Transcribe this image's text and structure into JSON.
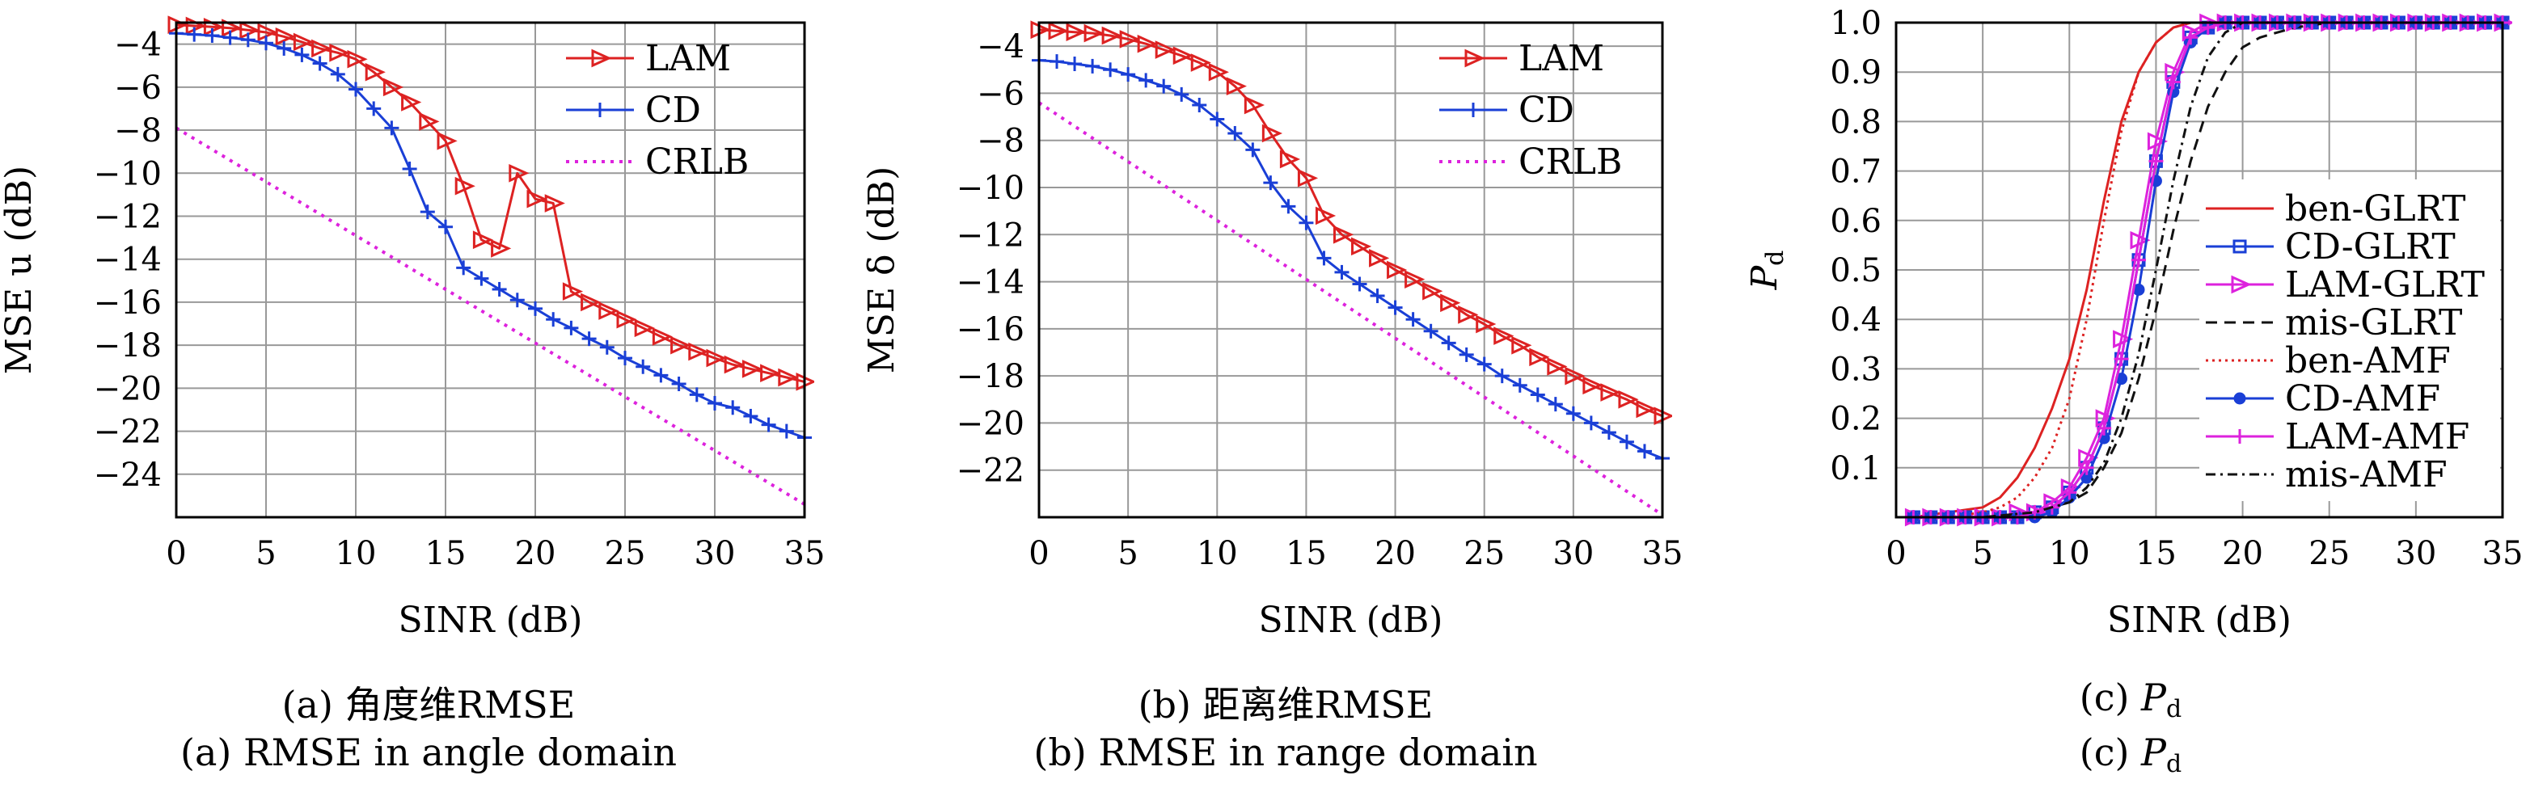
{
  "colors": {
    "lam": "#dd2222",
    "cd": "#1a3fd6",
    "crlb": "#dd22dd",
    "grid": "#999999",
    "frame": "#000000"
  },
  "captions": {
    "a": [
      "(a) 角度维RMSE",
      "(a) RMSE in angle domain"
    ],
    "b": [
      "(b) 距离维RMSE",
      "(b) RMSE in range domain"
    ],
    "c": [
      "(c) ",
      "(c) "
    ]
  },
  "chart_data": [
    {
      "id": "a",
      "type": "line",
      "xlabel": "SINR (dB)",
      "ylabel": "MSE u (dB)",
      "xlim": [
        0,
        35
      ],
      "ylim": [
        -26,
        -3
      ],
      "xticks": [
        0,
        5,
        10,
        15,
        20,
        25,
        30,
        35
      ],
      "yticks": [
        -24,
        -22,
        -20,
        -18,
        -16,
        -14,
        -12,
        -10,
        -8,
        -6,
        -4
      ],
      "grid": true,
      "legend_position": "top-right",
      "legend_bg": false,
      "series": [
        {
          "name": "LAM",
          "color": "#dd2222",
          "marker": "tri-right",
          "dash": "",
          "width": 3,
          "x": [
            0,
            1,
            2,
            3,
            4,
            5,
            6,
            7,
            8,
            9,
            10,
            11,
            12,
            13,
            14,
            15,
            16,
            17,
            18,
            19,
            20,
            21,
            22,
            23,
            24,
            25,
            26,
            27,
            28,
            29,
            30,
            31,
            32,
            33,
            34,
            35
          ],
          "y": [
            -3.1,
            -3.15,
            -3.2,
            -3.25,
            -3.35,
            -3.45,
            -3.65,
            -3.9,
            -4.2,
            -4.4,
            -4.7,
            -5.3,
            -6.0,
            -6.7,
            -7.6,
            -8.5,
            -10.6,
            -13.1,
            -13.5,
            -10.0,
            -11.2,
            -11.4,
            -15.5,
            -16.0,
            -16.4,
            -16.8,
            -17.2,
            -17.6,
            -18.0,
            -18.3,
            -18.6,
            -18.9,
            -19.1,
            -19.3,
            -19.5,
            -19.7
          ]
        },
        {
          "name": "CD",
          "color": "#1a3fd6",
          "marker": "plus",
          "dash": "",
          "width": 3,
          "x": [
            0,
            1,
            2,
            3,
            4,
            5,
            6,
            7,
            8,
            9,
            10,
            11,
            12,
            13,
            14,
            15,
            16,
            17,
            18,
            19,
            20,
            21,
            22,
            23,
            24,
            25,
            26,
            27,
            28,
            29,
            30,
            31,
            32,
            33,
            34,
            35
          ],
          "y": [
            -3.5,
            -3.55,
            -3.6,
            -3.7,
            -3.8,
            -3.95,
            -4.2,
            -4.5,
            -4.9,
            -5.4,
            -6.1,
            -7.0,
            -7.9,
            -9.8,
            -11.8,
            -12.5,
            -14.4,
            -14.9,
            -15.4,
            -15.9,
            -16.3,
            -16.8,
            -17.2,
            -17.7,
            -18.1,
            -18.6,
            -19.0,
            -19.4,
            -19.8,
            -20.3,
            -20.7,
            -20.9,
            -21.3,
            -21.7,
            -22.0,
            -22.3
          ]
        },
        {
          "name": "CRLB",
          "color": "#dd22dd",
          "marker": "none",
          "dash": "4 7",
          "width": 4,
          "x": [
            0,
            35
          ],
          "y": [
            -7.9,
            -25.4
          ]
        }
      ]
    },
    {
      "id": "b",
      "type": "line",
      "xlabel": "SINR (dB)",
      "ylabel": "MSE δ (dB)",
      "xlim": [
        0,
        35
      ],
      "ylim": [
        -24,
        -3
      ],
      "xticks": [
        0,
        5,
        10,
        15,
        20,
        25,
        30,
        35
      ],
      "yticks": [
        -22,
        -20,
        -18,
        -16,
        -14,
        -12,
        -10,
        -8,
        -6,
        -4
      ],
      "grid": true,
      "legend_position": "top-right",
      "legend_bg": false,
      "series": [
        {
          "name": "LAM",
          "color": "#dd2222",
          "marker": "tri-right",
          "dash": "",
          "width": 3,
          "x": [
            0,
            1,
            2,
            3,
            4,
            5,
            6,
            7,
            8,
            9,
            10,
            11,
            12,
            13,
            14,
            15,
            16,
            17,
            18,
            19,
            20,
            21,
            22,
            23,
            24,
            25,
            26,
            27,
            28,
            29,
            30,
            31,
            32,
            33,
            34,
            35
          ],
          "y": [
            -3.3,
            -3.35,
            -3.4,
            -3.45,
            -3.55,
            -3.7,
            -3.9,
            -4.15,
            -4.4,
            -4.7,
            -5.1,
            -5.7,
            -6.5,
            -7.7,
            -8.8,
            -9.6,
            -11.2,
            -12.0,
            -12.5,
            -13.0,
            -13.5,
            -13.9,
            -14.4,
            -14.9,
            -15.4,
            -15.8,
            -16.3,
            -16.7,
            -17.2,
            -17.6,
            -18.0,
            -18.4,
            -18.7,
            -19.0,
            -19.4,
            -19.7
          ]
        },
        {
          "name": "CD",
          "color": "#1a3fd6",
          "marker": "plus",
          "dash": "",
          "width": 3,
          "x": [
            0,
            1,
            2,
            3,
            4,
            5,
            6,
            7,
            8,
            9,
            10,
            11,
            12,
            13,
            14,
            15,
            16,
            17,
            18,
            19,
            20,
            21,
            22,
            23,
            24,
            25,
            26,
            27,
            28,
            29,
            30,
            31,
            32,
            33,
            34,
            35
          ],
          "y": [
            -4.6,
            -4.65,
            -4.75,
            -4.85,
            -5.0,
            -5.2,
            -5.45,
            -5.7,
            -6.05,
            -6.5,
            -7.1,
            -7.7,
            -8.4,
            -9.8,
            -10.8,
            -11.5,
            -13.0,
            -13.6,
            -14.1,
            -14.6,
            -15.1,
            -15.6,
            -16.1,
            -16.6,
            -17.1,
            -17.5,
            -18.0,
            -18.4,
            -18.8,
            -19.2,
            -19.6,
            -20.0,
            -20.4,
            -20.8,
            -21.2,
            -21.5
          ]
        },
        {
          "name": "CRLB",
          "color": "#dd22dd",
          "marker": "none",
          "dash": "4 7",
          "width": 4,
          "x": [
            0,
            35
          ],
          "y": [
            -6.4,
            -23.9
          ]
        }
      ]
    },
    {
      "id": "c",
      "type": "line",
      "xlabel": "SINR (dB)",
      "ylabel": "P",
      "ylabel_sub": "d",
      "xlim": [
        0,
        35
      ],
      "ylim": [
        0,
        1.0
      ],
      "xticks": [
        0,
        5,
        10,
        15,
        20,
        25,
        30,
        35
      ],
      "yticks": [
        0.1,
        0.2,
        0.3,
        0.4,
        0.5,
        0.6,
        0.7,
        0.8,
        0.9,
        1.0
      ],
      "grid": true,
      "legend_position": "center-right",
      "legend_bg": true,
      "series": [
        {
          "name": "ben-GLRT",
          "color": "#dd2222",
          "marker": "none",
          "dash": "",
          "width": 3,
          "x": [
            1,
            3,
            5,
            6,
            7,
            8,
            9,
            10,
            11,
            12,
            13,
            14,
            15,
            16,
            17,
            18,
            19,
            20,
            22,
            25,
            30,
            35
          ],
          "y": [
            0.0,
            0.01,
            0.02,
            0.04,
            0.08,
            0.14,
            0.22,
            0.32,
            0.46,
            0.64,
            0.8,
            0.9,
            0.96,
            0.99,
            1.0,
            1.0,
            1.0,
            1.0,
            1.0,
            1.0,
            1.0,
            1.0
          ]
        },
        {
          "name": "CD-GLRT",
          "color": "#1a3fd6",
          "marker": "square",
          "dash": "",
          "width": 3,
          "x": [
            1,
            2,
            3,
            4,
            5,
            6,
            7,
            8,
            9,
            10,
            11,
            12,
            13,
            14,
            15,
            16,
            17,
            18,
            19,
            20,
            21,
            22,
            23,
            24,
            25,
            26,
            27,
            28,
            29,
            30,
            31,
            32,
            33,
            34,
            35
          ],
          "y": [
            0.0,
            0.0,
            0.0,
            0.0,
            0.0,
            0.0,
            0.0,
            0.01,
            0.02,
            0.05,
            0.1,
            0.18,
            0.32,
            0.52,
            0.72,
            0.88,
            0.97,
            0.99,
            1.0,
            1.0,
            1.0,
            1.0,
            1.0,
            1.0,
            1.0,
            1.0,
            1.0,
            1.0,
            1.0,
            1.0,
            1.0,
            1.0,
            1.0,
            1.0,
            1.0
          ]
        },
        {
          "name": "LAM-GLRT",
          "color": "#dd22dd",
          "marker": "tri-right",
          "dash": "",
          "width": 3,
          "x": [
            1,
            2,
            3,
            4,
            5,
            6,
            7,
            8,
            9,
            10,
            11,
            12,
            13,
            14,
            15,
            16,
            17,
            18,
            19,
            20,
            21,
            22,
            23,
            24,
            25,
            26,
            27,
            28,
            29,
            30,
            31,
            32,
            33,
            34,
            35
          ],
          "y": [
            0.0,
            0.0,
            0.0,
            0.0,
            0.0,
            0.0,
            0.01,
            0.01,
            0.03,
            0.06,
            0.12,
            0.2,
            0.36,
            0.56,
            0.76,
            0.9,
            0.98,
            1.0,
            1.0,
            1.0,
            1.0,
            1.0,
            1.0,
            1.0,
            1.0,
            1.0,
            1.0,
            1.0,
            1.0,
            1.0,
            1.0,
            1.0,
            1.0,
            1.0,
            1.0
          ]
        },
        {
          "name": "mis-GLRT",
          "color": "#111111",
          "marker": "none",
          "dash": "14 9",
          "width": 3,
          "x": [
            1,
            5,
            8,
            10,
            11,
            12,
            13,
            14,
            15,
            16,
            17,
            18,
            19,
            20,
            21,
            22,
            23,
            25,
            28,
            30,
            35
          ],
          "y": [
            0.0,
            0.0,
            0.01,
            0.03,
            0.05,
            0.1,
            0.17,
            0.28,
            0.42,
            0.58,
            0.72,
            0.83,
            0.9,
            0.95,
            0.97,
            0.98,
            0.99,
            1.0,
            1.0,
            1.0,
            1.0
          ]
        },
        {
          "name": "ben-AMF",
          "color": "#dd2222",
          "marker": "none",
          "dash": "3 5",
          "width": 3,
          "x": [
            1,
            3,
            5,
            6,
            7,
            8,
            9,
            10,
            11,
            12,
            13,
            14,
            15,
            16,
            17,
            18,
            20,
            25,
            30,
            35
          ],
          "y": [
            0.0,
            0.0,
            0.01,
            0.02,
            0.04,
            0.08,
            0.14,
            0.24,
            0.4,
            0.6,
            0.78,
            0.9,
            0.96,
            0.99,
            1.0,
            1.0,
            1.0,
            1.0,
            1.0,
            1.0
          ]
        },
        {
          "name": "CD-AMF",
          "color": "#1a3fd6",
          "marker": "dot",
          "dash": "",
          "width": 3,
          "x": [
            1,
            2,
            3,
            4,
            5,
            6,
            7,
            8,
            9,
            10,
            11,
            12,
            13,
            14,
            15,
            16,
            17,
            18,
            19,
            20,
            21,
            22,
            23,
            24,
            25,
            26,
            27,
            28,
            29,
            30,
            31,
            32,
            33,
            34,
            35
          ],
          "y": [
            0.0,
            0.0,
            0.0,
            0.0,
            0.0,
            0.0,
            0.0,
            0.0,
            0.01,
            0.04,
            0.08,
            0.16,
            0.28,
            0.46,
            0.68,
            0.86,
            0.96,
            0.99,
            1.0,
            1.0,
            1.0,
            1.0,
            1.0,
            1.0,
            1.0,
            1.0,
            1.0,
            1.0,
            1.0,
            1.0,
            1.0,
            1.0,
            1.0,
            1.0,
            1.0
          ]
        },
        {
          "name": "LAM-AMF",
          "color": "#dd22dd",
          "marker": "plus",
          "dash": "",
          "width": 3,
          "x": [
            1,
            2,
            3,
            4,
            5,
            6,
            7,
            8,
            9,
            10,
            11,
            12,
            13,
            14,
            15,
            16,
            17,
            18,
            19,
            20,
            21,
            22,
            23,
            24,
            25,
            26,
            27,
            28,
            29,
            30,
            31,
            32,
            33,
            34,
            35
          ],
          "y": [
            0.0,
            0.0,
            0.0,
            0.0,
            0.0,
            0.0,
            0.0,
            0.01,
            0.02,
            0.05,
            0.1,
            0.18,
            0.32,
            0.52,
            0.72,
            0.88,
            0.97,
            0.99,
            1.0,
            1.0,
            1.0,
            1.0,
            1.0,
            1.0,
            1.0,
            1.0,
            1.0,
            1.0,
            1.0,
            1.0,
            1.0,
            1.0,
            1.0,
            1.0,
            1.0
          ]
        },
        {
          "name": "mis-AMF",
          "color": "#111111",
          "marker": "none",
          "dash": "12 6 3 6",
          "width": 3,
          "x": [
            1,
            5,
            8,
            10,
            11,
            12,
            13,
            14,
            15,
            16,
            17,
            18,
            19,
            20,
            22,
            25,
            30,
            35
          ],
          "y": [
            0.0,
            0.0,
            0.01,
            0.03,
            0.06,
            0.11,
            0.2,
            0.33,
            0.5,
            0.68,
            0.83,
            0.93,
            0.98,
            1.0,
            1.0,
            1.0,
            1.0,
            1.0
          ]
        }
      ]
    }
  ]
}
